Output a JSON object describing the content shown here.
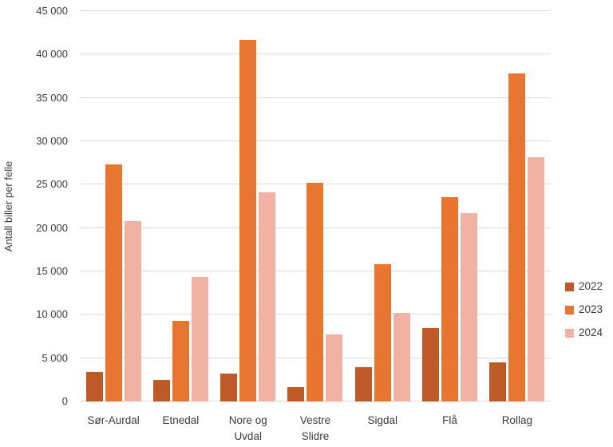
{
  "chart_data": {
    "type": "bar",
    "title": "",
    "xlabel": "",
    "ylabel": "Antall biller per felle",
    "categories": [
      "Sør-Aurdal",
      "Etnedal",
      "Nore og Uvdal",
      "Vestre Slidre",
      "Sigdal",
      "Flå",
      "Rollag"
    ],
    "series": [
      {
        "name": "2022",
        "color": "#BE5A27",
        "values": [
          3400,
          2500,
          3200,
          1700,
          4000,
          8500,
          4500
        ]
      },
      {
        "name": "2023",
        "color": "#E97630",
        "values": [
          27300,
          9300,
          41700,
          25200,
          15800,
          23600,
          37800
        ]
      },
      {
        "name": "2024",
        "color": "#F2B2A3",
        "values": [
          20800,
          14400,
          24100,
          7700,
          10200,
          21700,
          28200
        ]
      }
    ],
    "ylim": [
      0,
      45000
    ],
    "ytick_step": 5000,
    "ytick_labels": [
      "0",
      "5 000",
      "10 000",
      "15 000",
      "20 000",
      "25 000",
      "30 000",
      "35 000",
      "40 000",
      "45 000"
    ],
    "grid": true,
    "legend_position": "right",
    "colors": {
      "gridline": "#D9D9D9",
      "text": "#3B3B3B",
      "background": "#FFFFFF"
    }
  }
}
